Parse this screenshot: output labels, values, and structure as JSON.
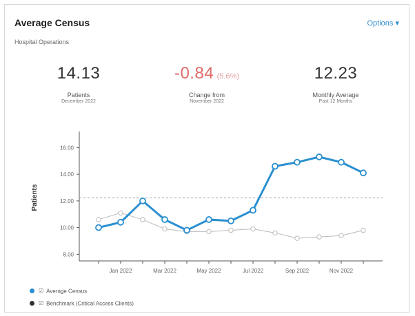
{
  "card": {
    "title": "Average Census",
    "subtitle": "Hospital Operations",
    "options_label": "Options ▾"
  },
  "kpis": [
    {
      "value": "14.13",
      "pct": "",
      "label": "Patients",
      "sub": "December 2022"
    },
    {
      "value": "-0.84",
      "pct": "(5.6%)",
      "label": "Change from",
      "sub": "November 2022"
    },
    {
      "value": "12.23",
      "pct": "",
      "label": "Monthly Average",
      "sub": "Past 12 Months"
    }
  ],
  "legend": [
    {
      "label": "Average Census",
      "color": "#2a8fd0"
    },
    {
      "label": "Benchmark (Critical Access Clients)",
      "color": "#333333"
    }
  ],
  "chart_data": {
    "type": "line",
    "ylabel": "Patients",
    "xlabel": "",
    "ylim": [
      7.5,
      17.0
    ],
    "yticks": [
      8,
      10,
      12,
      14,
      16
    ],
    "ytick_labels": [
      "8.00",
      "10.00",
      "12.00",
      "14.00",
      "16.00"
    ],
    "x": [
      "Dec 2021",
      "Jan 2022",
      "Feb 2022",
      "Mar 2022",
      "Apr 2022",
      "May 2022",
      "Jun 2022",
      "Jul 2022",
      "Aug 2022",
      "Sep 2022",
      "Oct 2022",
      "Nov 2022",
      "Dec 2022"
    ],
    "xtick_labels": [
      {
        "index": 1,
        "label": "Jan 2022"
      },
      {
        "index": 3,
        "label": "Mar 2022"
      },
      {
        "index": 5,
        "label": "May 2022"
      },
      {
        "index": 7,
        "label": "Jul 2022"
      },
      {
        "index": 9,
        "label": "Sep 2022"
      },
      {
        "index": 11,
        "label": "Nov 2022"
      }
    ],
    "reference_line": 12.23,
    "series": [
      {
        "name": "Average Census",
        "color": "#2a8fd0",
        "values": [
          10.0,
          10.4,
          12.0,
          10.6,
          9.8,
          10.6,
          10.5,
          11.3,
          14.6,
          14.9,
          15.3,
          14.9,
          14.1
        ]
      },
      {
        "name": "Benchmark (Critical Access Clients)",
        "color": "#bbbbbb",
        "values": [
          10.6,
          11.1,
          10.6,
          9.9,
          9.7,
          9.7,
          9.8,
          9.9,
          9.6,
          9.2,
          9.3,
          9.4,
          9.8
        ]
      }
    ]
  }
}
